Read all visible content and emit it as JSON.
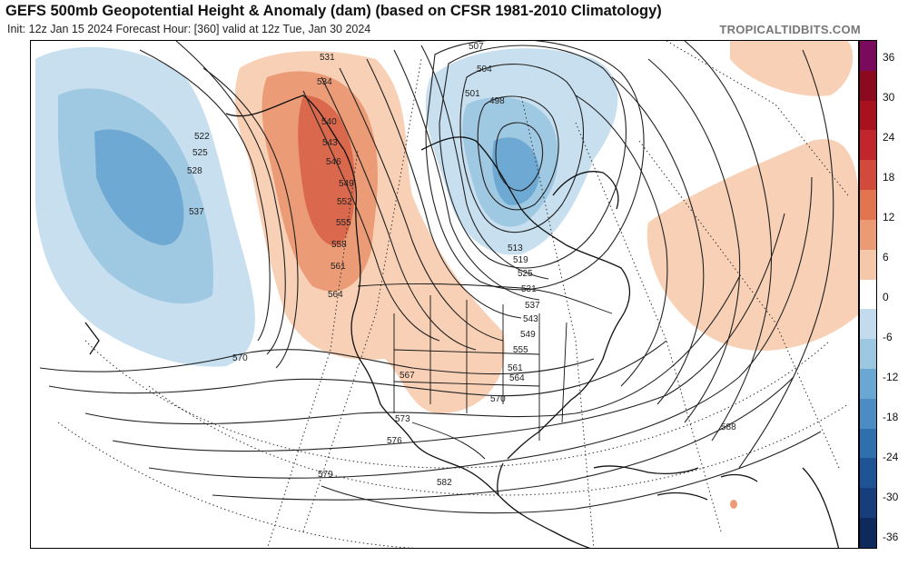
{
  "header": {
    "title": "GEFS 500mb Geopotential Height & Anomaly (dam) (based on CFSR 1981-2010 Climatology)",
    "subtitle": "Init: 12z Jan 15 2024   Forecast Hour: [360]   valid at 12z Tue, Jan 30 2024",
    "brand": "TROPICALTIDBITS.COM"
  },
  "colorbar": {
    "labels": [
      "36",
      "30",
      "24",
      "18",
      "12",
      "6",
      "0",
      "-6",
      "-12",
      "-18",
      "-24",
      "-30",
      "-36"
    ],
    "colors": [
      "#7a0a5e",
      "#8b0a1e",
      "#a8121f",
      "#c0262c",
      "#d24a3c",
      "#e2744f",
      "#ec9a74",
      "#f6c8aa",
      "#ffffff",
      "#c2dced",
      "#9cc7e1",
      "#6aa8d3",
      "#4a8cc3",
      "#2e6fae",
      "#1e5496",
      "#163e7c",
      "#0e2a5c"
    ]
  },
  "anomalies": {
    "positive_colors": [
      "#f8d0b6",
      "#eb9b76",
      "#d9684c"
    ],
    "negative_colors": [
      "#c7dfee",
      "#9fc8e2",
      "#6ea9d3"
    ]
  },
  "contour_labels": [
    {
      "name": "label-522",
      "text": "522"
    },
    {
      "name": "label-525",
      "text": "525"
    },
    {
      "name": "label-528",
      "text": "528"
    },
    {
      "name": "label-537-west",
      "text": "537"
    },
    {
      "name": "label-570-west",
      "text": "570"
    },
    {
      "name": "label-531-north",
      "text": "531"
    },
    {
      "name": "label-534",
      "text": "534"
    },
    {
      "name": "label-540",
      "text": "540"
    },
    {
      "name": "label-543-ridge",
      "text": "543"
    },
    {
      "name": "label-546",
      "text": "546"
    },
    {
      "name": "label-549",
      "text": "549"
    },
    {
      "name": "label-552",
      "text": "552"
    },
    {
      "name": "label-555-ridge",
      "text": "555"
    },
    {
      "name": "label-558",
      "text": "558"
    },
    {
      "name": "label-561-ridge",
      "text": "561"
    },
    {
      "name": "label-564-ridge",
      "text": "564"
    },
    {
      "name": "label-567",
      "text": "567"
    },
    {
      "name": "label-573",
      "text": "573"
    },
    {
      "name": "label-576",
      "text": "576"
    },
    {
      "name": "label-579",
      "text": "579"
    },
    {
      "name": "label-582",
      "text": "582"
    },
    {
      "name": "label-570-east",
      "text": "570"
    },
    {
      "name": "label-588",
      "text": "588"
    },
    {
      "name": "label-507",
      "text": "507"
    },
    {
      "name": "label-504",
      "text": "504"
    },
    {
      "name": "label-501",
      "text": "501"
    },
    {
      "name": "label-498",
      "text": "498"
    },
    {
      "name": "label-513",
      "text": "513"
    },
    {
      "name": "label-519",
      "text": "519"
    },
    {
      "name": "label-525-east",
      "text": "525"
    },
    {
      "name": "label-531-east",
      "text": "531"
    },
    {
      "name": "label-537-east",
      "text": "537"
    },
    {
      "name": "label-543-east",
      "text": "543"
    },
    {
      "name": "label-549-east",
      "text": "549"
    },
    {
      "name": "label-555-east",
      "text": "555"
    },
    {
      "name": "label-561-east",
      "text": "561"
    },
    {
      "name": "label-564-east",
      "text": "564"
    }
  ]
}
